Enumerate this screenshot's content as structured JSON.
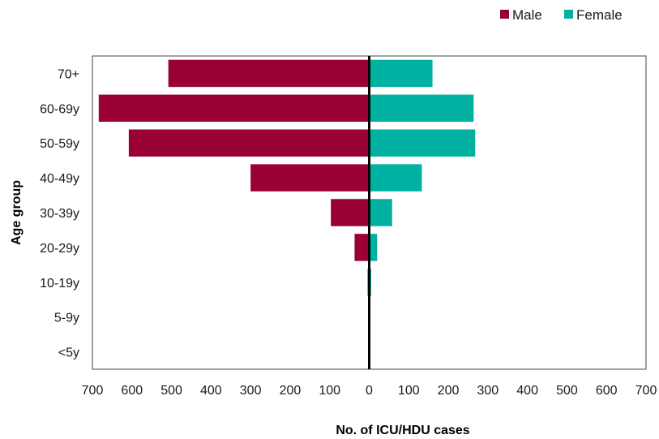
{
  "chart_data": {
    "type": "bar",
    "orientation": "horizontal-population-pyramid",
    "xlabel": "No. of ICU/HDU cases",
    "ylabel": "Age group",
    "categories": [
      "70+",
      "60-69y",
      "50-59y",
      "40-49y",
      "30-39y",
      "20-29y",
      "10-19y",
      "5-9y",
      "<5y"
    ],
    "series": [
      {
        "name": "Male",
        "color": "#990033",
        "side": "left",
        "values": [
          508,
          684,
          608,
          300,
          97,
          37,
          4,
          0,
          0
        ]
      },
      {
        "name": "Female",
        "color": "#00b0a0",
        "side": "right",
        "values": [
          160,
          264,
          268,
          133,
          58,
          20,
          5,
          0,
          0
        ]
      }
    ],
    "xlim": [
      -700,
      700
    ],
    "xticks": [
      700,
      600,
      500,
      400,
      300,
      200,
      100,
      0,
      100,
      200,
      300,
      400,
      500,
      600,
      700
    ],
    "legend": "top-right",
    "grid": false
  }
}
